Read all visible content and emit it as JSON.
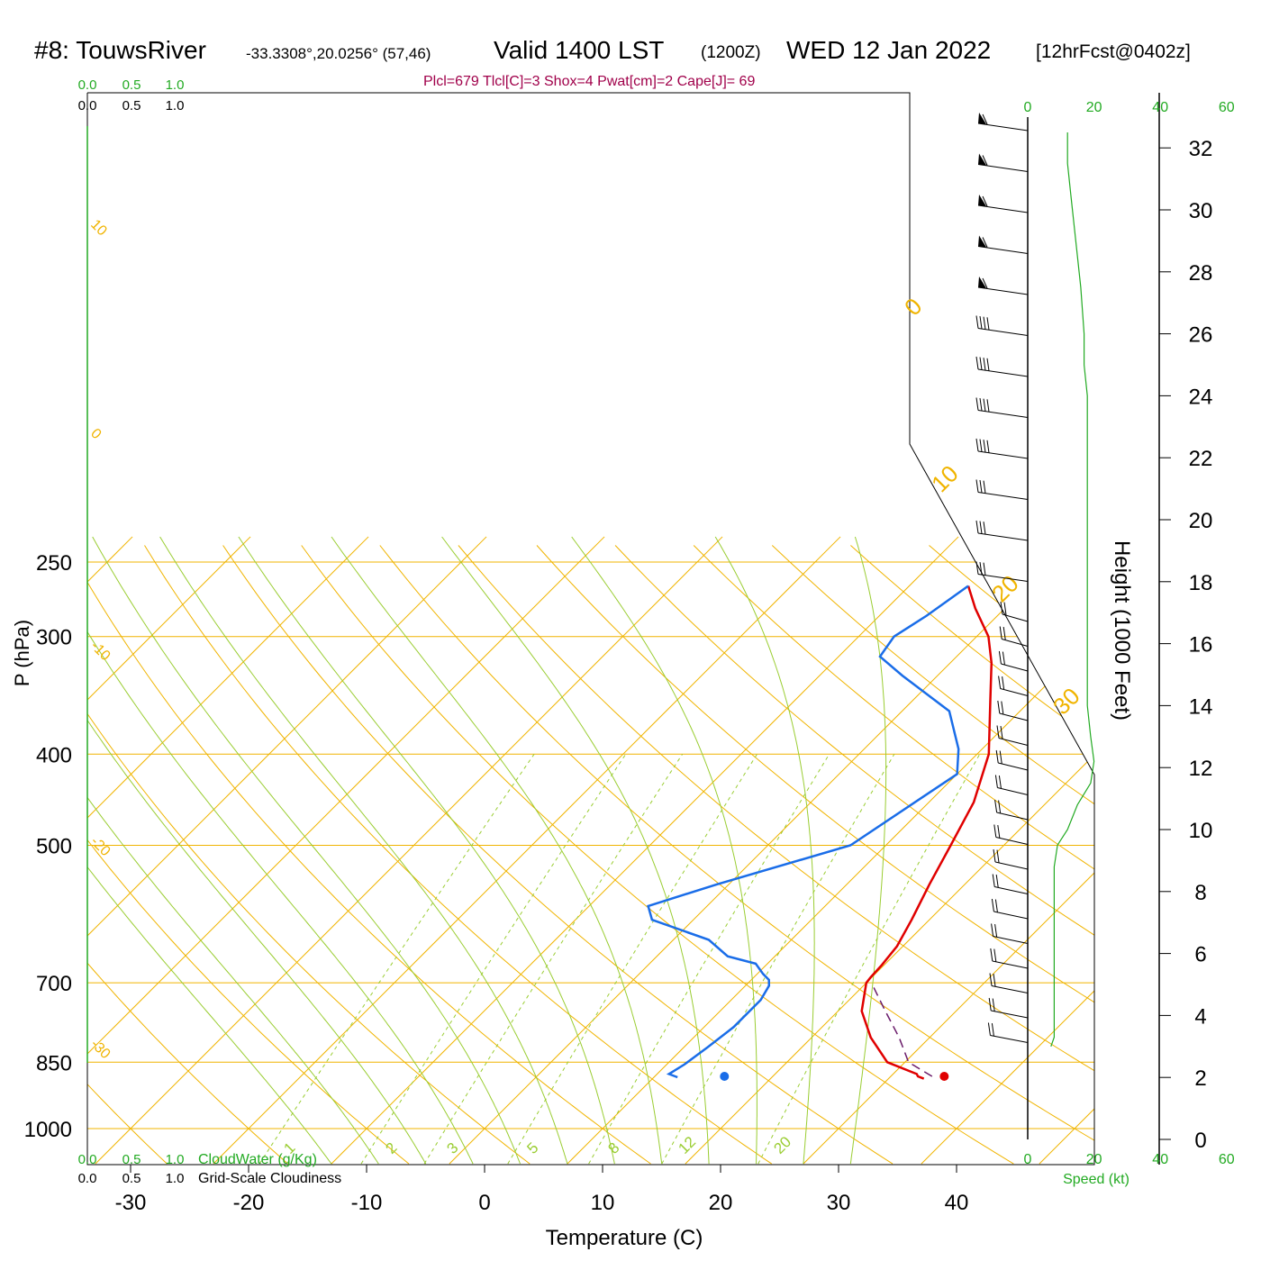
{
  "header": {
    "station": "#8: TouwsRiver",
    "coords": "-33.3308°,20.0256° (57,46)",
    "valid": "Valid 1400 LST",
    "zulu": "(1200Z)",
    "date": "WED 12 Jan 2022",
    "forecast": "[12hrFcst@0402z]",
    "indices": "Plcl=679 Tlcl[C]=3 Shox=4 Pwat[cm]=2 Cape[J]= 69"
  },
  "colors": {
    "temperature": "#e00000",
    "dewpoint": "#1a6de8",
    "isotherm": "#f0b400",
    "dry_adiabat": "#f0b400",
    "moist_adiabat": "#9acd32",
    "mixing_ratio": "#9acd32",
    "speed": "#22aa22",
    "parcel": "#6a1b6a",
    "cloud": "#22aa22"
  },
  "chart_data": [
    {
      "type": "line",
      "name": "skewt",
      "xlabel": "Temperature (C)",
      "ylabel": "P (hPa)",
      "x_ticks": [
        -30,
        -20,
        -10,
        0,
        10,
        20,
        30,
        40
      ],
      "xlim": [
        -34,
        45
      ],
      "y_ticks": [
        250,
        300,
        400,
        500,
        700,
        850,
        1000
      ],
      "ylim": [
        1000,
        250
      ],
      "y_scale": "log",
      "skewed_isotherms": [
        -30,
        -20,
        -10,
        0,
        10,
        20,
        30
      ],
      "isotherm_labels": [
        {
          "text": "10",
          "t": -10
        },
        {
          "text": "0",
          "t": 0
        },
        {
          "text": "-10",
          "t": 10
        },
        {
          "text": "-20",
          "t": 20
        },
        {
          "text": "-30",
          "t": 30
        }
      ],
      "dry_adiabat_labels": [
        "0",
        "10",
        "20",
        "30"
      ],
      "mixing_ratio_labels": [
        "1",
        "2",
        "3",
        "5",
        "8",
        "12",
        "20"
      ],
      "series": [
        {
          "name": "Temperature",
          "p": [
            885,
            880,
            875,
            850,
            800,
            750,
            700,
            690,
            670,
            640,
            600,
            550,
            500,
            450,
            400,
            350,
            320,
            300,
            280,
            265
          ],
          "t": [
            33,
            32.3,
            32,
            28.5,
            25,
            22,
            20,
            19.9,
            19.8,
            19.5,
            18.5,
            17,
            15.5,
            13.8,
            11,
            6.5,
            3.5,
            1,
            -2.5,
            -5
          ]
        },
        {
          "name": "Dewpoint",
          "p": [
            882,
            875,
            855,
            820,
            780,
            730,
            705,
            695,
            685,
            668,
            656,
            630,
            600,
            580,
            550,
            500,
            420,
            395,
            360,
            330,
            315,
            300,
            285,
            265
          ],
          "t": [
            12,
            11,
            11.5,
            12,
            12.5,
            12.5,
            12,
            11.5,
            10.5,
            9,
            6,
            3,
            -3.5,
            -5,
            -1,
            7,
            10,
            8,
            4,
            -3,
            -6.5,
            -7,
            -6,
            -5
          ]
        },
        {
          "name": "Parcel",
          "p": [
            880,
            850,
            800,
            750,
            705
          ],
          "t": [
            33.5,
            30.3,
            27.4,
            24.0,
            20.8
          ]
        }
      ],
      "surface_temperature": 34.3,
      "surface_dewpoint": 15.9,
      "surface_pressure": 880
    },
    {
      "type": "line",
      "name": "height-axis",
      "ylabel": "Height (1000 Feet)",
      "y_ticks": [
        0,
        2,
        4,
        6,
        8,
        10,
        12,
        14,
        16,
        18,
        20,
        22,
        24,
        26,
        28,
        30,
        32
      ]
    },
    {
      "type": "line",
      "name": "wind-speed",
      "xlabel": "Speed (kt)",
      "x_ticks": [
        0,
        20,
        40,
        60
      ],
      "wind_barbs": 30,
      "heights_kft": [
        3,
        3.3,
        3.8,
        4.8,
        6,
        7.5,
        8.8,
        9.5,
        10,
        10.8,
        11.5,
        12.2,
        13,
        14,
        16,
        19,
        22,
        24,
        25,
        26,
        27.5,
        28.5,
        29.5,
        30.5,
        31.5,
        32.5
      ],
      "speed_kt": [
        7,
        8,
        8,
        8,
        8,
        8,
        8,
        9,
        12,
        15,
        19,
        20,
        19,
        18,
        18,
        18,
        18,
        18,
        17,
        17,
        16,
        15,
        14,
        13,
        12,
        12
      ]
    },
    {
      "type": "line",
      "name": "cloud-axes",
      "cloudwater_label": "CloudWater (g/Kg)",
      "cloudiness_label": "Grid-Scale Cloudiness",
      "ticks": [
        "0.0",
        "0.5",
        "1.0"
      ]
    }
  ]
}
